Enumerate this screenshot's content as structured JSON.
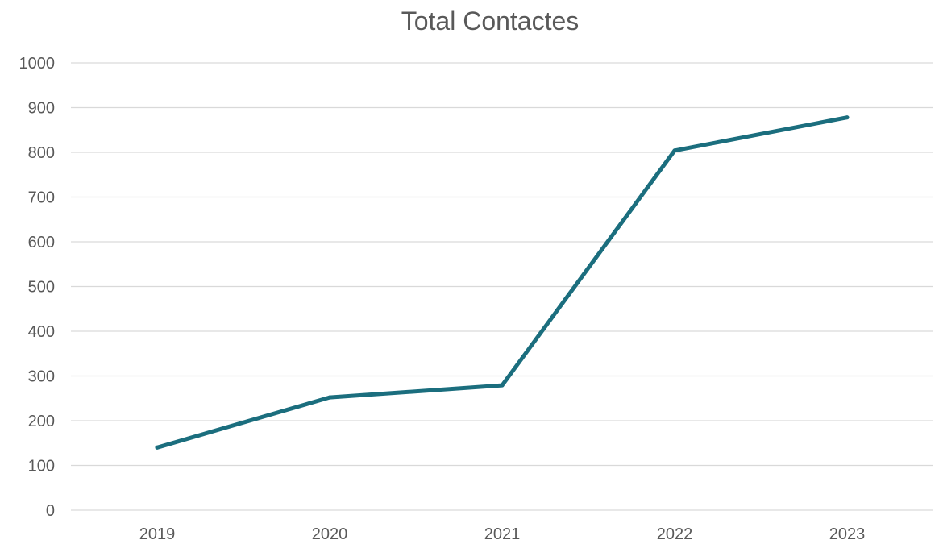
{
  "chart_data": {
    "type": "line",
    "title": "Total Contactes",
    "xlabel": "",
    "ylabel": "",
    "categories": [
      "2019",
      "2020",
      "2021",
      "2022",
      "2023"
    ],
    "series": [
      {
        "values": [
          140,
          252,
          279,
          804,
          878
        ]
      }
    ],
    "ylim": [
      0,
      1000
    ],
    "yticks": [
      0,
      100,
      200,
      300,
      400,
      500,
      600,
      700,
      800,
      900,
      1000
    ],
    "grid": true,
    "legend": "none",
    "colors": {
      "series": "#1B6E7E",
      "grid": "#D9D9D9",
      "text": "#595959"
    }
  }
}
